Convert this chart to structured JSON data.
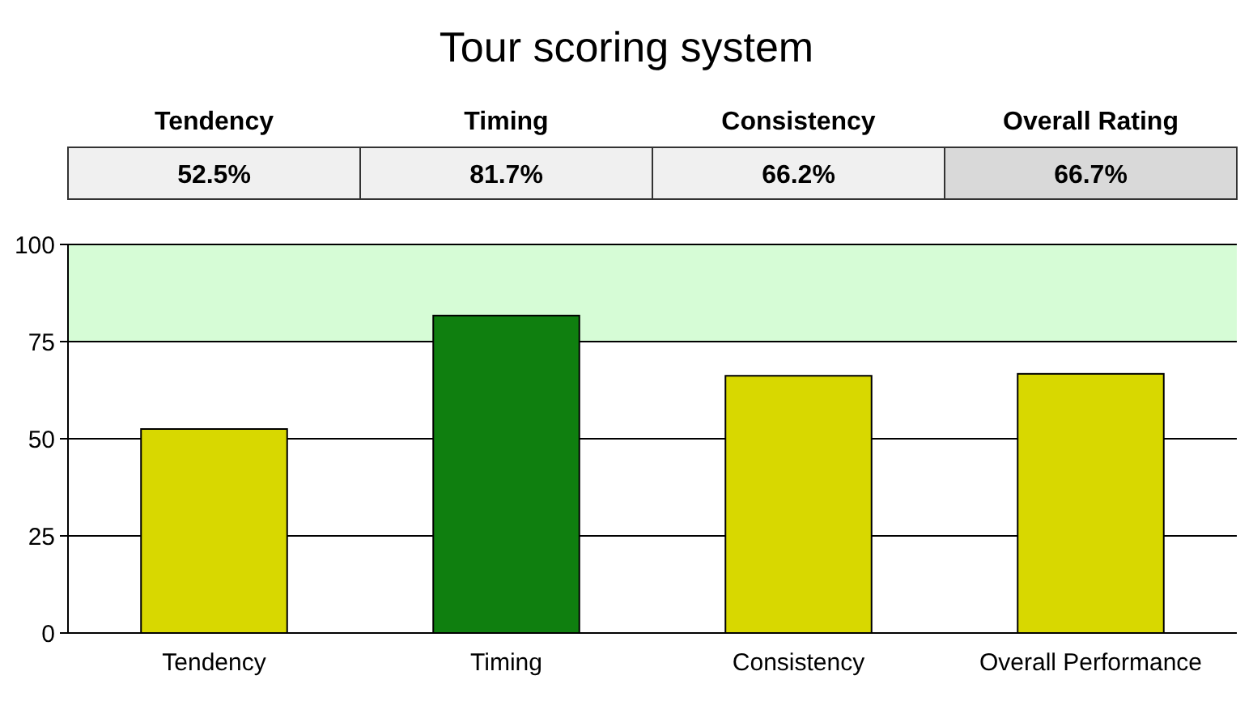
{
  "chart_data": {
    "type": "bar",
    "title": "Tour scoring system",
    "categories": [
      "Tendency",
      "Timing",
      "Consistency",
      "Overall Performance"
    ],
    "values": [
      52.5,
      81.7,
      66.2,
      66.7
    ],
    "colors": [
      "#d8d800",
      "#0f7f0f",
      "#d8d800",
      "#d8d800"
    ],
    "value_labels": [
      "52.5%",
      "81.7%",
      "66.2%",
      "66.7%"
    ],
    "annotations": [
      "Tendency",
      "Timing",
      "Consistency",
      "Overall Rating"
    ],
    "ylim": [
      0,
      100
    ],
    "yticks": [
      0,
      25,
      50,
      75,
      100
    ],
    "grid": "y",
    "bands": [
      {
        "axis": "y",
        "from": 75,
        "to": 100,
        "label": null,
        "color": "#d6fcd6"
      }
    ]
  }
}
